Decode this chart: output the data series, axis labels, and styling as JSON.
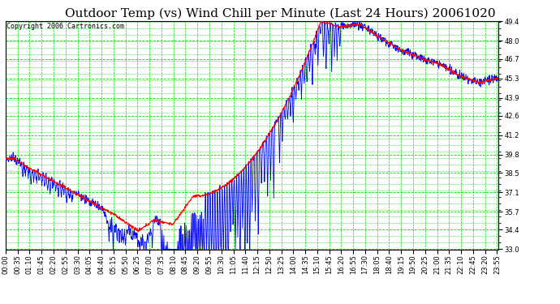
{
  "title": "Outdoor Temp (vs) Wind Chill per Minute (Last 24 Hours) 20061020",
  "copyright": "Copyright 2006 Cartronics.com",
  "ylim": [
    33.0,
    49.4
  ],
  "yticks": [
    33.0,
    34.4,
    35.7,
    37.1,
    38.5,
    39.8,
    41.2,
    42.6,
    43.9,
    45.3,
    46.7,
    48.0,
    49.4
  ],
  "bg_color": "#ffffff",
  "plot_bg_color": "#ffffff",
  "grid_color": "#00dd00",
  "outer_temp_color": "#ff0000",
  "wind_chill_color": "#0000ff",
  "title_fontsize": 11,
  "copyright_fontsize": 6,
  "tick_label_fontsize": 6,
  "n_minutes": 1440,
  "x_tick_interval": 35
}
